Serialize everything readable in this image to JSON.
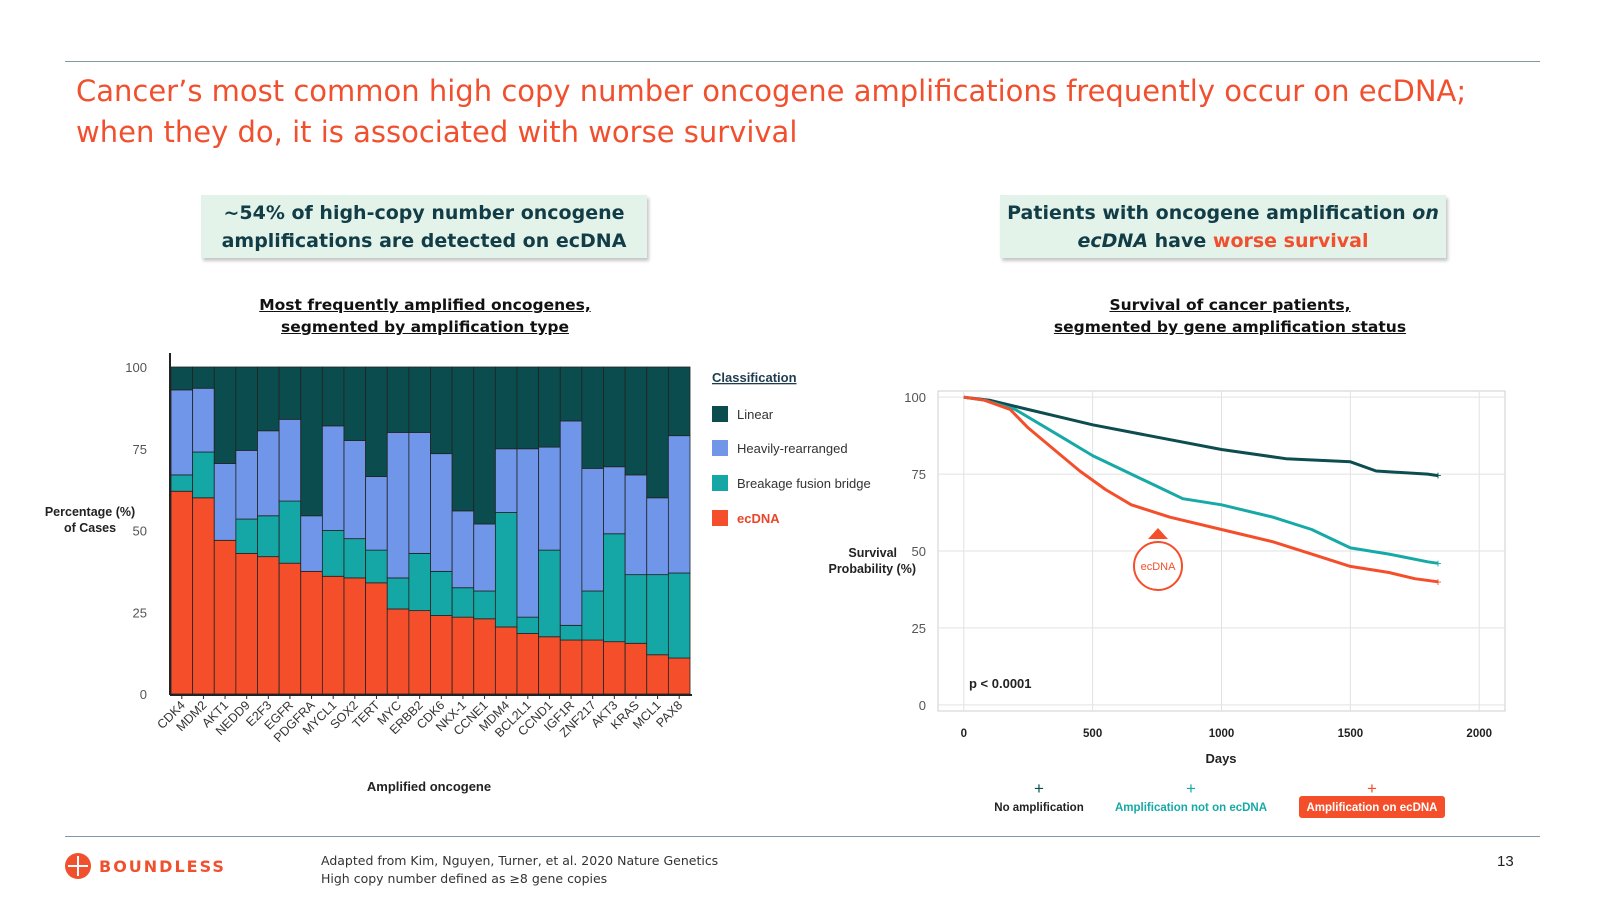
{
  "slide": {
    "title_line1": "Cancer’s most common high copy number oncogene amplifications frequently occur on ecDNA;",
    "title_line2": "when they do, it is associated with worse survival",
    "left_callout_line1": "~54% of high-copy number oncogene",
    "left_callout_line2": "amplifications are detected on ecDNA",
    "right_callout_part1": "Patients with oncogene amplification ",
    "right_callout_part2": "on",
    "right_callout_part3": "ecDNA",
    "right_callout_part4": " have ",
    "right_callout_part5": "worse survival",
    "left_subtitle_line1": "Most frequently amplified oncogenes,",
    "left_subtitle_line2": "segmented by amplification type",
    "right_subtitle_line1": "Survival of cancer patients,",
    "right_subtitle_line2": "segmented by gene amplification status",
    "footer_line1": "Adapted from Kim, Nguyen, Turner, et al. 2020 Nature Genetics",
    "footer_line2": "High copy number defined as ≥8 gene copies",
    "page_number": "13",
    "logo_text": "BOUNDLESS"
  },
  "chart_data": [
    {
      "type": "bar",
      "stacked": true,
      "xlabel": "Amplified oncogene",
      "ylabel_line1": "Percentage (%)",
      "ylabel_line2": "of Cases",
      "ylim": [
        0,
        100
      ],
      "yticks": [
        "0",
        "25",
        "50",
        "75",
        "100"
      ],
      "legend_title": "Classification",
      "legend_position": "right",
      "categories": [
        "CDK4",
        "MDM2",
        "AKT1",
        "NEDD9",
        "E2F3",
        "EGFR",
        "PDGFRA",
        "MYCL1",
        "SOX2",
        "TERT",
        "MYC",
        "ERBB2",
        "CDK6",
        "NKX-1",
        "CCNE1",
        "MDM4",
        "BCL2L1",
        "CCND1",
        "IGF1R",
        "ZNF217",
        "AKT3",
        "KRAS",
        "MCL1",
        "PAX8"
      ],
      "series": [
        {
          "name": "ecDNA",
          "color": "#f44f2a",
          "values": [
            62,
            60,
            47,
            43,
            42,
            40,
            37.5,
            36,
            35.5,
            34,
            26,
            25.5,
            24,
            23.5,
            23,
            20.5,
            18.5,
            17.5,
            16.5,
            16.5,
            16,
            15.5,
            12,
            11
          ]
        },
        {
          "name": "Breakage fusion bridge",
          "color": "#14a7a6",
          "values": [
            5,
            14,
            0,
            10.5,
            12.5,
            19,
            0,
            14,
            12,
            10,
            9.5,
            17.5,
            13.5,
            9,
            8.5,
            35,
            5,
            26.5,
            4.5,
            15,
            33,
            21,
            24.5,
            26
          ]
        },
        {
          "name": "Heavily-rearranged",
          "color": "#6f96e8",
          "values": [
            26,
            19.5,
            23.5,
            21,
            26,
            25,
            17,
            32,
            30,
            22.5,
            44.5,
            37,
            36,
            23.5,
            20.5,
            19.5,
            51.5,
            31.5,
            62.5,
            37.5,
            20.5,
            30.5,
            23.5,
            42
          ]
        },
        {
          "name": "Linear",
          "color": "#0b4d4e",
          "values": [
            7,
            6.5,
            29.5,
            25.5,
            19.5,
            16,
            45.5,
            18,
            22.5,
            33.5,
            20,
            20,
            26.5,
            44,
            48,
            25,
            25,
            24.5,
            16.5,
            31,
            30.5,
            33,
            40,
            21
          ]
        }
      ]
    },
    {
      "type": "line",
      "subtype": "kaplan-meier",
      "xlabel": "Days",
      "ylabel_line1": "Survival",
      "ylabel_line2": "Probability (%)",
      "xlim": [
        -100,
        2100
      ],
      "ylim": [
        -2,
        102
      ],
      "xticks": [
        "0",
        "500",
        "1000",
        "1500",
        "2000"
      ],
      "yticks": [
        "0",
        "25",
        "50",
        "75",
        "100"
      ],
      "grid": true,
      "annotation_pvalue": "p < 0.0001",
      "annotation_label": "ecDNA",
      "legend_position": "bottom",
      "series": [
        {
          "name": "No amplification",
          "color": "#0d4d4f",
          "points": [
            [
              0,
              100
            ],
            [
              100,
              99
            ],
            [
              250,
              96
            ],
            [
              400,
              93
            ],
            [
              500,
              91
            ],
            [
              750,
              87
            ],
            [
              1000,
              83
            ],
            [
              1250,
              80
            ],
            [
              1500,
              79
            ],
            [
              1600,
              76
            ],
            [
              1800,
              75
            ],
            [
              1840,
              74.5
            ]
          ]
        },
        {
          "name": "Amplification not on ecDNA",
          "color": "#17a9a8",
          "points": [
            [
              0,
              100
            ],
            [
              80,
              99
            ],
            [
              200,
              96
            ],
            [
              300,
              91
            ],
            [
              400,
              86
            ],
            [
              500,
              81
            ],
            [
              650,
              75
            ],
            [
              750,
              71
            ],
            [
              850,
              67
            ],
            [
              1000,
              65
            ],
            [
              1200,
              61
            ],
            [
              1350,
              57
            ],
            [
              1500,
              51
            ],
            [
              1650,
              49
            ],
            [
              1800,
              46.5
            ],
            [
              1840,
              46
            ]
          ]
        },
        {
          "name": "Amplification on ecDNA",
          "color": "#f44f2a",
          "points": [
            [
              0,
              100
            ],
            [
              80,
              99
            ],
            [
              180,
              96
            ],
            [
              250,
              90
            ],
            [
              350,
              83
            ],
            [
              450,
              76
            ],
            [
              550,
              70
            ],
            [
              650,
              65
            ],
            [
              800,
              61
            ],
            [
              1000,
              57
            ],
            [
              1200,
              53
            ],
            [
              1350,
              49
            ],
            [
              1500,
              45
            ],
            [
              1650,
              43
            ],
            [
              1750,
              41
            ],
            [
              1840,
              40
            ]
          ]
        }
      ]
    }
  ]
}
